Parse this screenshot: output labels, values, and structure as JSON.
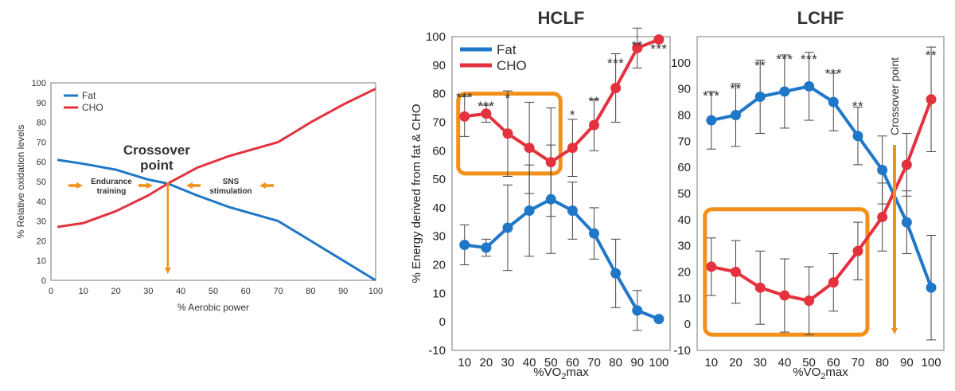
{
  "colors": {
    "fat": "#1f77c8",
    "cho": "#e3323e",
    "orange": "#f39019",
    "errorbar": "#444444"
  },
  "chart_data": [
    {
      "type": "line",
      "xlabel": "% Aerobic power",
      "ylabel": "% Relative oxidation levels",
      "xlim": [
        0,
        100
      ],
      "ylim": [
        0,
        100
      ],
      "x_ticks": [
        "0",
        "10",
        "20",
        "30",
        "40",
        "50",
        "60",
        "70",
        "80",
        "90",
        "100"
      ],
      "y_ticks": [
        "0",
        "10",
        "20",
        "30",
        "40",
        "50",
        "60",
        "70",
        "80",
        "90",
        "100"
      ],
      "legend": [
        "Fat",
        "CHO"
      ],
      "series": [
        {
          "name": "Fat",
          "x": [
            2,
            10,
            20,
            30,
            36,
            45,
            55,
            70,
            80,
            90,
            100
          ],
          "values": [
            61,
            59,
            56,
            51,
            49,
            43,
            37,
            30,
            20,
            10,
            0
          ]
        },
        {
          "name": "CHO",
          "x": [
            2,
            10,
            20,
            30,
            36,
            45,
            55,
            70,
            80,
            90,
            100
          ],
          "values": [
            27,
            29,
            35,
            43,
            49,
            57,
            63,
            70,
            80,
            89,
            97
          ]
        }
      ],
      "annotations": {
        "crossover": "Crossover point",
        "crossover_x": 36,
        "left_label": "Endurance training",
        "right_label": "SNS stimulation"
      }
    },
    {
      "type": "line",
      "title": "HCLF",
      "xlabel": "%VO2max",
      "ylabel": "% Energy derived from fat & CHO",
      "ylim": [
        -10,
        100
      ],
      "categories": [
        "10",
        "20",
        "30",
        "40",
        "50",
        "60",
        "70",
        "80",
        "90",
        "100"
      ],
      "y_ticks": [
        "-10",
        "0",
        "10",
        "20",
        "30",
        "40",
        "50",
        "60",
        "70",
        "80",
        "90",
        "100"
      ],
      "legend": [
        "Fat",
        "CHO"
      ],
      "series": [
        {
          "name": "Fat",
          "values": [
            27,
            26,
            33,
            39,
            43,
            39,
            31,
            17,
            4,
            1
          ],
          "err": [
            7,
            3,
            15,
            16,
            19,
            10,
            9,
            12,
            7,
            0
          ]
        },
        {
          "name": "CHO",
          "values": [
            72,
            73,
            66,
            61,
            56,
            61,
            69,
            82,
            96,
            99
          ],
          "err": [
            7,
            3,
            15,
            16,
            19,
            10,
            9,
            12,
            7,
            0
          ]
        }
      ],
      "significance": [
        "***",
        "***",
        "*",
        "",
        "",
        "*",
        "**",
        "***",
        "**",
        "***"
      ],
      "highlight": {
        "x": [
          10,
          50
        ],
        "y": [
          52,
          80
        ]
      }
    },
    {
      "type": "line",
      "title": "LCHF",
      "xlabel": "%VO2max",
      "ylim": [
        -10,
        110
      ],
      "categories": [
        "10",
        "20",
        "30",
        "40",
        "50",
        "60",
        "70",
        "80",
        "90",
        "100"
      ],
      "y_ticks": [
        "-10",
        "0",
        "10",
        "20",
        "30",
        "40",
        "50",
        "60",
        "70",
        "80",
        "90",
        "100"
      ],
      "series": [
        {
          "name": "Fat",
          "values": [
            78,
            80,
            87,
            89,
            91,
            85,
            72,
            59,
            39,
            14
          ],
          "err": [
            11,
            12,
            14,
            14,
            13,
            11,
            11,
            13,
            12,
            20
          ]
        },
        {
          "name": "CHO",
          "values": [
            22,
            20,
            14,
            11,
            9,
            16,
            28,
            41,
            61,
            86
          ],
          "err": [
            11,
            12,
            14,
            14,
            13,
            11,
            11,
            13,
            12,
            20
          ]
        }
      ],
      "significance": [
        "***",
        "**",
        "**",
        "***",
        "***",
        "***",
        "**",
        "",
        "",
        "**"
      ],
      "crossover_label": "Crossover point",
      "crossover_x": 85,
      "highlight": {
        "x": [
          10,
          70
        ],
        "y": [
          -4,
          44
        ]
      }
    }
  ]
}
